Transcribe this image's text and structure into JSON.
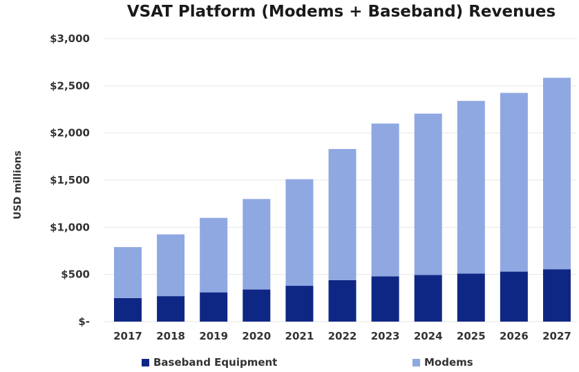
{
  "chart_data": {
    "type": "bar",
    "stacked": true,
    "title": "VSAT Platform (Modems + Baseband) Revenues",
    "xlabel": "",
    "ylabel": "USD millions",
    "ylim": [
      0,
      3000
    ],
    "yticks": [
      0,
      500,
      1000,
      1500,
      2000,
      2500,
      3000
    ],
    "ytick_labels": [
      "$-",
      "$500",
      "$1,000",
      "$1,500",
      "$2,000",
      "$2,500",
      "$3,000"
    ],
    "categories": [
      "2017",
      "2018",
      "2019",
      "2020",
      "2021",
      "2022",
      "2023",
      "2024",
      "2025",
      "2026",
      "2027"
    ],
    "series": [
      {
        "name": "Baseband Equipment",
        "color": "#0f2784",
        "values": [
          250,
          270,
          310,
          340,
          380,
          440,
          480,
          495,
          510,
          530,
          555
        ]
      },
      {
        "name": "Modems",
        "color": "#8fa8e2",
        "values": [
          540,
          655,
          790,
          960,
          1130,
          1390,
          1620,
          1710,
          1830,
          1895,
          2030
        ]
      }
    ],
    "grid": true,
    "legend_position": "bottom"
  }
}
